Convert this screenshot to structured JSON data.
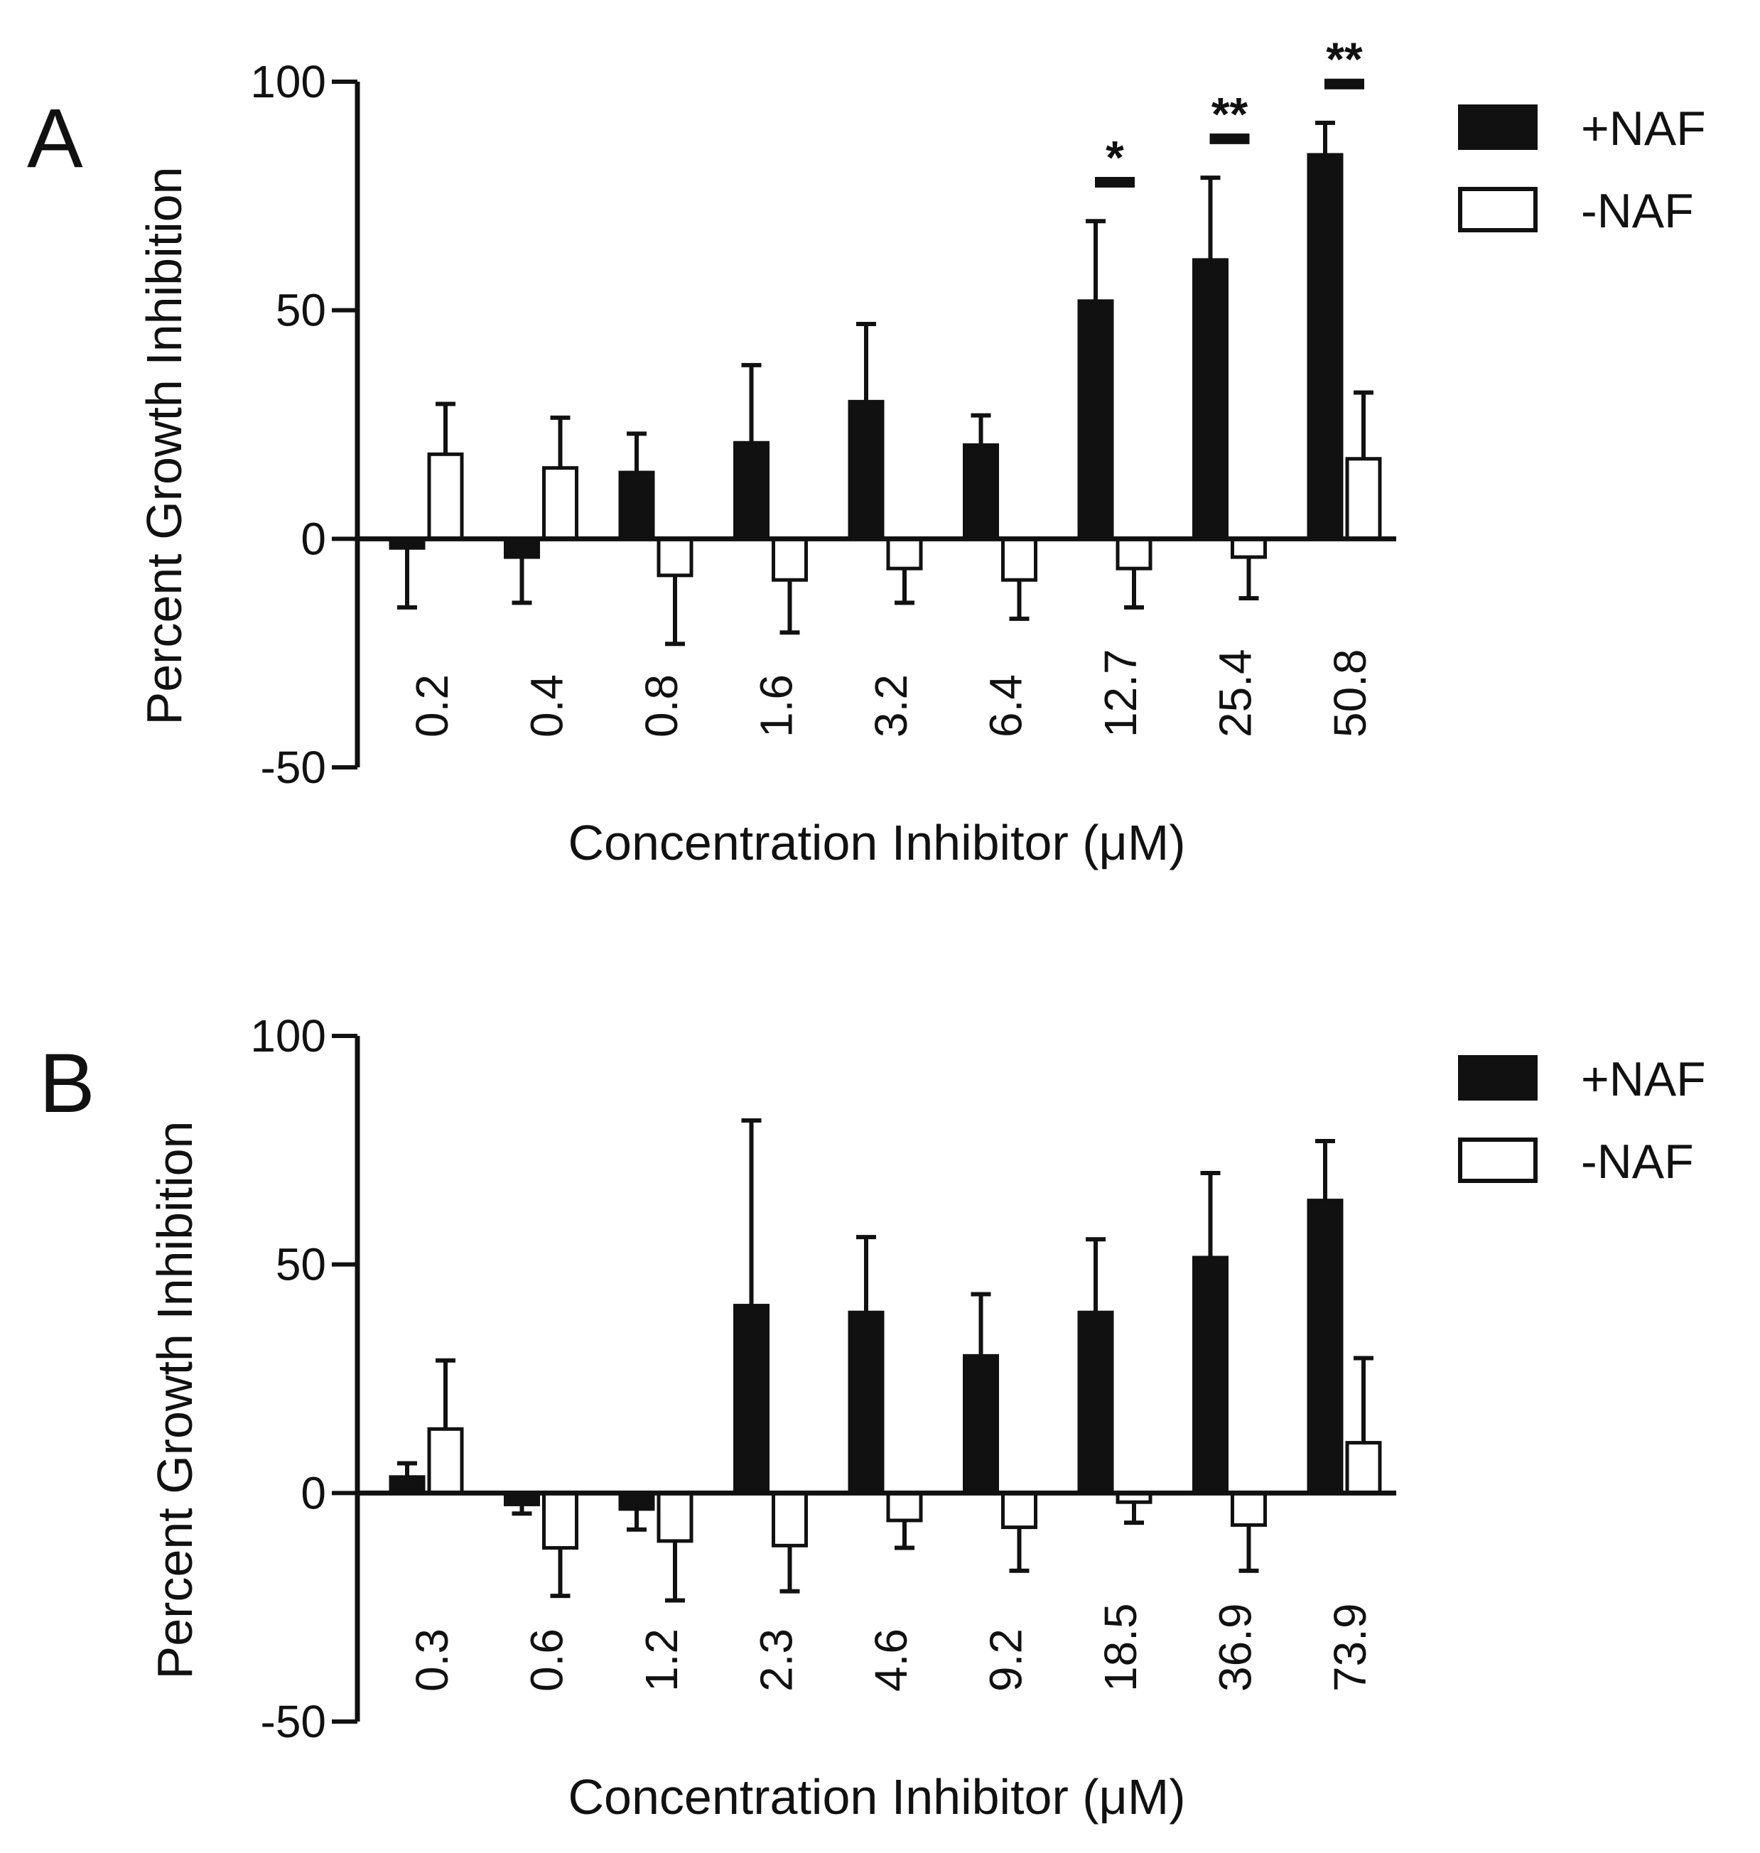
{
  "chart_data": [
    {
      "type": "bar",
      "panel_label": "A",
      "title": "",
      "xlabel": "Concentration Inhibitor (μM)",
      "ylabel": "Percent Growth Inhibition",
      "ylim": [
        -50,
        100
      ],
      "yticks": [
        "-50",
        "0",
        "50",
        "100"
      ],
      "ytick_values": [
        -50,
        0,
        50,
        100
      ],
      "categories": [
        "0.2",
        "0.4",
        "0.8",
        "1.6",
        "3.2",
        "6.4",
        "12.7",
        "25.4",
        "50.8"
      ],
      "series": [
        {
          "name": "+NAF",
          "fill": "#111111",
          "values": [
            -2,
            -4,
            14.5,
            21,
            30,
            20.5,
            52,
            61,
            84
          ],
          "errors": [
            13,
            10,
            8.5,
            17,
            17,
            6.5,
            17.5,
            18,
            7
          ]
        },
        {
          "name": "-NAF",
          "fill": "#ffffff",
          "values": [
            18.5,
            15.5,
            -8,
            -9,
            -6.5,
            -9,
            -6.5,
            -4,
            17.5
          ],
          "errors": [
            11,
            11,
            15,
            11.5,
            7.5,
            8.5,
            8.5,
            9,
            14.5
          ]
        }
      ],
      "annotations": [
        {
          "category_index": 6,
          "label": "*",
          "y": 78
        },
        {
          "category_index": 7,
          "label": "**",
          "y": 87.5
        },
        {
          "category_index": 8,
          "label": "**",
          "y": 99.5
        }
      ],
      "legend_position": "top-right"
    },
    {
      "type": "bar",
      "panel_label": "B",
      "title": "",
      "xlabel": "Concentration Inhibitor (μM)",
      "ylabel": "Percent Growth Inhibition",
      "ylim": [
        -50,
        100
      ],
      "yticks": [
        "-50",
        "0",
        "50",
        "100"
      ],
      "ytick_values": [
        -50,
        0,
        50,
        100
      ],
      "categories": [
        "0.3",
        "0.6",
        "1.2",
        "2.3",
        "4.6",
        "9.2",
        "18.5",
        "36.9",
        "73.9"
      ],
      "series": [
        {
          "name": "+NAF",
          "fill": "#111111",
          "values": [
            3.5,
            -2.5,
            -3.5,
            41,
            39.5,
            30,
            39.5,
            51.5,
            64
          ],
          "errors": [
            3,
            2,
            4.5,
            40.5,
            16.5,
            13.5,
            16,
            18.5,
            13
          ]
        },
        {
          "name": "-NAF",
          "fill": "#ffffff",
          "values": [
            14,
            -12,
            -10.5,
            -11.5,
            -6,
            -7.5,
            -2,
            -7,
            11
          ],
          "errors": [
            15,
            10.5,
            13,
            10,
            6,
            9.5,
            4.5,
            10,
            18.5
          ]
        }
      ],
      "annotations": [],
      "legend_position": "top-right"
    }
  ]
}
